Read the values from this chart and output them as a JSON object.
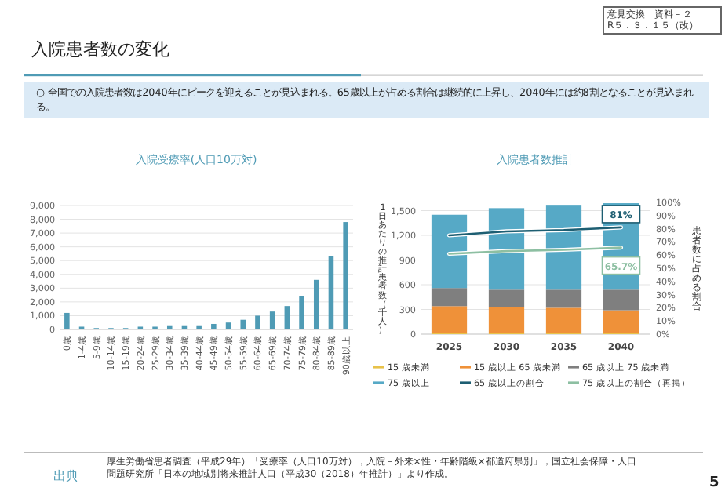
{
  "chart_data": [
    {
      "type": "other",
      "title": "入院患者数の変化",
      "subtitle": "○ 全国での入院患者数は2040年にピークを迎えることが見込まれる。65歳以上が占める割合は継続的に上昇し、2040年には約8割となることが見込まれる。",
      "annotations": [
        "意見交換　資料－２",
        "R５．３．１５（改）",
        "出典",
        "厚生労働省患者調査（平成29年）「受療率（人口10万対），入院－外来×性・年齢階級×都道府県別」，国立社会保障・人口問題研究所「日本の地域別将来推計人口（平成30（2018）年推計）」より作成。",
        "5"
      ]
    },
    {
      "type": "bar",
      "title": "入院受療率(人口10万対)",
      "categories": [
        "0歳",
        "1-4歳",
        "5-9歳",
        "10-14歳",
        "15-19歳",
        "20-24歳",
        "25-29歳",
        "30-34歳",
        "35-39歳",
        "40-44歳",
        "45-49歳",
        "50-54歳",
        "55-59歳",
        "60-64歳",
        "65-69歳",
        "70-74歳",
        "75-79歳",
        "80-84歳",
        "85-89歳",
        "90歳以上"
      ],
      "values": [
        1200,
        200,
        100,
        100,
        100,
        200,
        200,
        300,
        300,
        300,
        400,
        500,
        700,
        1000,
        1300,
        1700,
        2400,
        3600,
        5300,
        7800
      ],
      "color": "#4f9bb5",
      "ylim": [
        0,
        9000
      ],
      "yticks": [
        0,
        {
          "value": 1000,
          "label": "1,000"
        },
        {
          "value": 2000,
          "label": "2,000"
        },
        {
          "value": 3000,
          "label": "3,000"
        },
        {
          "value": 4000,
          "label": "4,000"
        },
        {
          "value": 5000,
          "label": "5,000"
        },
        {
          "value": 6000,
          "label": "6,000"
        },
        {
          "value": 7000,
          "label": "7,000"
        },
        {
          "value": 8000,
          "label": "8,000"
        },
        {
          "value": 9000,
          "label": "9,000"
        }
      ],
      "grid": "y"
    },
    {
      "type": "bar",
      "stacked": true,
      "title": "入院患者数推計",
      "ylabel": "1日あたりの推計患者数（千人）",
      "y2label": "患者数に占める割合",
      "categories": [
        "2025",
        "2030",
        "2035",
        "2040"
      ],
      "series": [
        {
          "name": "15 歳未満",
          "color": "#e8c24a",
          "values": [
            10,
            10,
            10,
            10
          ]
        },
        {
          "name": "15 歳以上 65 歳未満",
          "color": "#ef9139",
          "values": [
            330,
            320,
            310,
            280
          ]
        },
        {
          "name": "65 歳以上 75 歳未満",
          "color": "#7f7f7f",
          "values": [
            220,
            210,
            220,
            250
          ]
        },
        {
          "name": "75 歳以上",
          "color": "#56a9c6",
          "values": [
            890,
            990,
            1030,
            1050
          ]
        },
        {
          "name": "65 歳以上の割合",
          "type": "line",
          "axis": "y2",
          "color": "#1d5e72",
          "values": [
            75,
            78,
            79,
            81
          ],
          "value_labels": [
            null,
            null,
            null,
            "81%"
          ]
        },
        {
          "name": "75 歳以上の割合（再掲）",
          "type": "line",
          "axis": "y2",
          "color": "#8dbfa2",
          "values": [
            61,
            63,
            64,
            65.7
          ],
          "value_labels": [
            null,
            null,
            null,
            "65.7%"
          ]
        }
      ],
      "ylim": [
        0,
        1600
      ],
      "yticks": [
        0,
        300,
        600,
        900,
        {
          "value": 1200,
          "label": "1,200"
        },
        {
          "value": 1500,
          "label": "1,500"
        }
      ],
      "y2lim": [
        0,
        100
      ],
      "y2ticks": [
        {
          "value": 0,
          "label": "0%"
        },
        {
          "value": 10,
          "label": "10%"
        },
        {
          "value": 20,
          "label": "20%"
        },
        {
          "value": 30,
          "label": "30%"
        },
        {
          "value": 40,
          "label": "40%"
        },
        {
          "value": 50,
          "label": "50%"
        },
        {
          "value": 60,
          "label": "60%"
        },
        {
          "value": 70,
          "label": "70%"
        },
        {
          "value": 80,
          "label": "80%"
        },
        {
          "value": 90,
          "label": "90%"
        },
        {
          "value": 100,
          "label": "100%"
        }
      ],
      "grid": "y",
      "legend": "bottom"
    }
  ]
}
